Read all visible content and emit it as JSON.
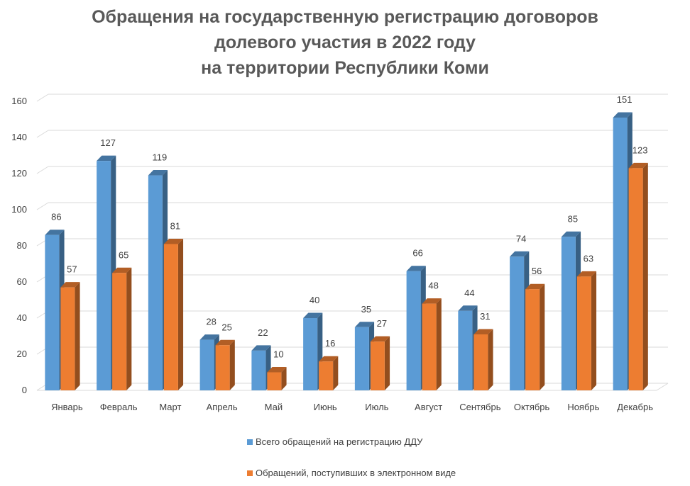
{
  "chart_data": {
    "type": "bar",
    "title_lines": [
      "Обращения на государственную регистрацию договоров",
      "долевого участия в 2022 году",
      "на территории Республики Коми"
    ],
    "categories": [
      "Январь",
      "Февраль",
      "Март",
      "Апрель",
      "Май",
      "Июнь",
      "Июль",
      "Август",
      "Сентябрь",
      "Октябрь",
      "Ноябрь",
      "Декабрь"
    ],
    "series": [
      {
        "name": "Всего обращений на регистрацию ДДУ",
        "values": [
          86,
          127,
          119,
          28,
          22,
          40,
          35,
          66,
          44,
          74,
          85,
          151
        ],
        "color": "#5B9BD5"
      },
      {
        "name": "Обращений, поступивших в электронном виде",
        "values": [
          57,
          65,
          81,
          25,
          10,
          16,
          27,
          48,
          31,
          56,
          63,
          123
        ],
        "color": "#ED7D31"
      }
    ],
    "yticks": [
      0,
      20,
      40,
      60,
      80,
      100,
      120,
      140,
      160
    ],
    "ylim": [
      0,
      160
    ],
    "grid": true,
    "legend_position": "bottom",
    "three_d": true
  }
}
